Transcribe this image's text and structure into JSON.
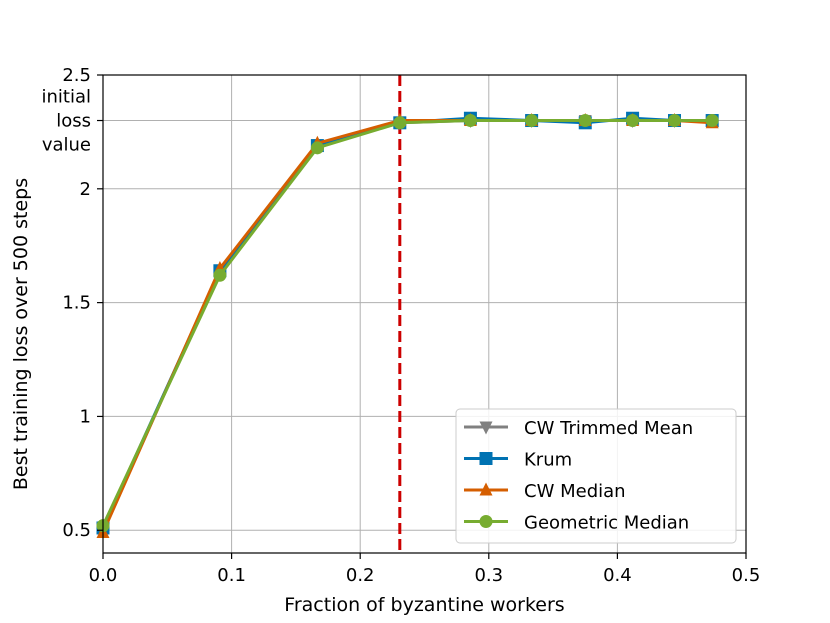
{
  "chart_data": {
    "type": "line",
    "xlabel": "Fraction of byzantine workers",
    "ylabel": "Best training loss over 500 steps",
    "xlim": [
      0.0,
      0.5
    ],
    "ylim": [
      0.4,
      2.5
    ],
    "xticks": [
      0.0,
      0.1,
      0.2,
      0.3,
      0.4,
      0.5
    ],
    "xtick_labels": [
      "0.0",
      "0.1",
      "0.2",
      "0.3",
      "0.4",
      "0.5"
    ],
    "yticks": [
      0.5,
      1.0,
      1.5,
      2.0,
      2.5
    ],
    "ytick_labels": [
      "0.5",
      "1",
      "1.5",
      "2",
      "2.5"
    ],
    "y_annotation": {
      "value": 2.3,
      "lines": [
        "initial",
        "loss",
        "value"
      ]
    },
    "grid": true,
    "legend_position": "lower-right",
    "vline": {
      "x": 0.2308,
      "color": "#cc0000",
      "style": "dashed"
    },
    "x": [
      0.0,
      0.0909,
      0.1667,
      0.2308,
      0.2857,
      0.3333,
      0.375,
      0.4118,
      0.4444,
      0.4737
    ],
    "series": [
      {
        "name": "CW Trimmed Mean",
        "marker": "triangle-down",
        "color": "#808080",
        "values": [
          0.5,
          1.64,
          2.19,
          2.29,
          2.3,
          2.3,
          2.3,
          2.3,
          2.3,
          2.3
        ]
      },
      {
        "name": "Krum",
        "marker": "square",
        "color": "#0072b2",
        "values": [
          0.51,
          1.64,
          2.19,
          2.29,
          2.31,
          2.3,
          2.29,
          2.31,
          2.3,
          2.3
        ]
      },
      {
        "name": "CW Median",
        "marker": "triangle-up",
        "color": "#d55e00",
        "values": [
          0.49,
          1.65,
          2.2,
          2.3,
          2.3,
          2.3,
          2.3,
          2.3,
          2.3,
          2.29
        ]
      },
      {
        "name": "Geometric Median",
        "marker": "circle",
        "color": "#77ac30",
        "values": [
          0.52,
          1.62,
          2.18,
          2.29,
          2.3,
          2.3,
          2.3,
          2.3,
          2.3,
          2.3
        ]
      }
    ]
  }
}
